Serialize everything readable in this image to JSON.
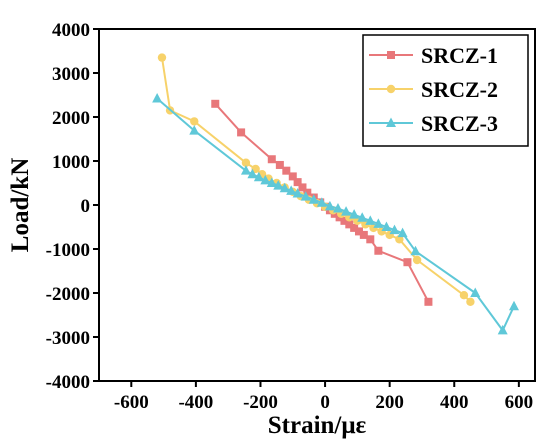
{
  "chart_data": {
    "type": "line",
    "xlabel": "Strain/με",
    "ylabel": "Load/kN",
    "xlim": [
      -700,
      650
    ],
    "ylim": [
      -4000,
      4000
    ],
    "xticks": [
      -600,
      -400,
      -200,
      0,
      200,
      400,
      600
    ],
    "yticks": [
      -4000,
      -3000,
      -2000,
      -1000,
      0,
      1000,
      2000,
      3000,
      4000
    ],
    "grid": false,
    "legend_position": "top-right",
    "series": [
      {
        "name": "SRCZ-1",
        "color": "#e8777a",
        "marker": "square",
        "points": [
          [
            -340,
            2300
          ],
          [
            -260,
            1650
          ],
          [
            -165,
            1040
          ],
          [
            -140,
            910
          ],
          [
            -120,
            780
          ],
          [
            -100,
            650
          ],
          [
            -85,
            520
          ],
          [
            -70,
            400
          ],
          [
            -55,
            280
          ],
          [
            -35,
            170
          ],
          [
            -15,
            60
          ],
          [
            0,
            -40
          ],
          [
            15,
            -120
          ],
          [
            30,
            -200
          ],
          [
            45,
            -280
          ],
          [
            60,
            -360
          ],
          [
            75,
            -440
          ],
          [
            90,
            -520
          ],
          [
            105,
            -600
          ],
          [
            120,
            -680
          ],
          [
            140,
            -780
          ],
          [
            165,
            -1040
          ],
          [
            255,
            -1300
          ],
          [
            320,
            -2200
          ]
        ]
      },
      {
        "name": "SRCZ-2",
        "color": "#f7d26a",
        "marker": "circle",
        "points": [
          [
            -505,
            3350
          ],
          [
            -480,
            2150
          ],
          [
            -405,
            1900
          ],
          [
            -245,
            960
          ],
          [
            -215,
            820
          ],
          [
            -195,
            700
          ],
          [
            -175,
            600
          ],
          [
            -150,
            500
          ],
          [
            -125,
            400
          ],
          [
            -100,
            300
          ],
          [
            -75,
            200
          ],
          [
            -50,
            120
          ],
          [
            -25,
            40
          ],
          [
            0,
            -40
          ],
          [
            25,
            -120
          ],
          [
            50,
            -200
          ],
          [
            75,
            -280
          ],
          [
            100,
            -360
          ],
          [
            125,
            -440
          ],
          [
            150,
            -520
          ],
          [
            175,
            -600
          ],
          [
            200,
            -680
          ],
          [
            230,
            -780
          ],
          [
            285,
            -1250
          ],
          [
            430,
            -2050
          ],
          [
            450,
            -2200
          ]
        ]
      },
      {
        "name": "SRCZ-3",
        "color": "#5fc8d8",
        "marker": "triangle",
        "points": [
          [
            -520,
            2420
          ],
          [
            -405,
            1690
          ],
          [
            -245,
            780
          ],
          [
            -225,
            700
          ],
          [
            -205,
            630
          ],
          [
            -185,
            560
          ],
          [
            -165,
            500
          ],
          [
            -145,
            440
          ],
          [
            -125,
            380
          ],
          [
            -105,
            320
          ],
          [
            -85,
            260
          ],
          [
            -60,
            190
          ],
          [
            -35,
            120
          ],
          [
            -10,
            50
          ],
          [
            15,
            -30
          ],
          [
            40,
            -80
          ],
          [
            65,
            -150
          ],
          [
            90,
            -220
          ],
          [
            115,
            -290
          ],
          [
            140,
            -360
          ],
          [
            165,
            -430
          ],
          [
            190,
            -500
          ],
          [
            215,
            -570
          ],
          [
            240,
            -640
          ],
          [
            280,
            -1050
          ],
          [
            465,
            -2000
          ],
          [
            550,
            -2850
          ],
          [
            585,
            -2300
          ]
        ]
      }
    ]
  }
}
